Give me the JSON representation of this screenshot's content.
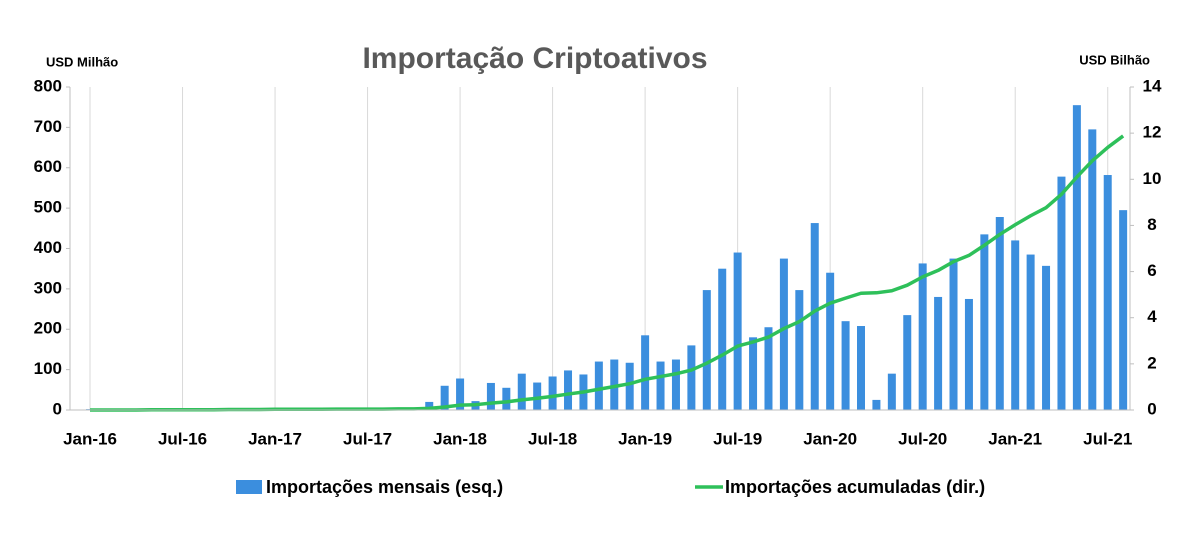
{
  "chart_data": {
    "type": "bar_line",
    "title": "Importação Criptoativos",
    "y_label": "USD Milhão",
    "y2_label": "USD Bilhão",
    "categories": [
      "Jan-16",
      null,
      null,
      null,
      null,
      null,
      "Jul-16",
      null,
      null,
      null,
      null,
      null,
      "Jan-17",
      null,
      null,
      null,
      null,
      null,
      "Jul-17",
      null,
      null,
      null,
      null,
      null,
      "Jan-18",
      null,
      null,
      null,
      null,
      null,
      "Jul-18",
      null,
      null,
      null,
      null,
      null,
      "Jan-19",
      null,
      null,
      null,
      null,
      null,
      "Jul-19",
      null,
      null,
      null,
      null,
      null,
      "Jan-20",
      null,
      null,
      null,
      null,
      null,
      "Jul-20",
      null,
      null,
      null,
      null,
      null,
      "Jan-21",
      null,
      null,
      null,
      null,
      null,
      "Jul-21",
      null
    ],
    "series": [
      {
        "name": "Importações mensais (esq.)",
        "type": "bar",
        "color": "#3b8ede",
        "values": [
          2,
          2,
          2,
          2,
          2,
          2,
          2,
          2,
          2,
          2,
          2,
          2,
          5,
          2,
          2,
          2,
          2,
          2,
          2,
          2,
          2,
          2,
          20,
          60,
          78,
          22,
          67,
          55,
          90,
          68,
          83,
          98,
          88,
          120,
          125,
          117,
          185,
          120,
          125,
          160,
          297,
          350,
          390,
          180,
          205,
          375,
          297,
          463,
          340,
          220,
          208,
          25,
          90,
          235,
          363,
          280,
          375,
          275,
          435,
          478,
          420,
          385,
          357,
          578,
          755,
          695,
          582,
          495
        ]
      },
      {
        "name": "Importações acumuladas (dir.)",
        "type": "line",
        "axis": "y2",
        "color": "#2ec05a",
        "values": [
          0,
          0,
          0,
          0,
          0.01,
          0.01,
          0.01,
          0.01,
          0.01,
          0.02,
          0.02,
          0.02,
          0.03,
          0.03,
          0.03,
          0.03,
          0.04,
          0.04,
          0.04,
          0.04,
          0.05,
          0.05,
          0.07,
          0.13,
          0.21,
          0.23,
          0.3,
          0.35,
          0.44,
          0.51,
          0.59,
          0.69,
          0.78,
          0.9,
          1.02,
          1.14,
          1.33,
          1.45,
          1.57,
          1.73,
          2.03,
          2.38,
          2.77,
          2.95,
          3.16,
          3.53,
          3.83,
          4.29,
          4.63,
          4.85,
          5.06,
          5.08,
          5.17,
          5.41,
          5.77,
          6.05,
          6.43,
          6.7,
          7.14,
          7.61,
          8.03,
          8.42,
          8.77,
          9.35,
          10.1,
          10.8,
          11.38,
          11.88
        ]
      }
    ],
    "ylim": [
      0,
      800
    ],
    "yticks": [
      0,
      100,
      200,
      300,
      400,
      500,
      600,
      700,
      800
    ],
    "y2lim": [
      0,
      14
    ],
    "y2ticks": [
      0,
      2,
      4,
      6,
      8,
      10,
      12,
      14
    ],
    "grid": true,
    "legend": "bottom"
  }
}
